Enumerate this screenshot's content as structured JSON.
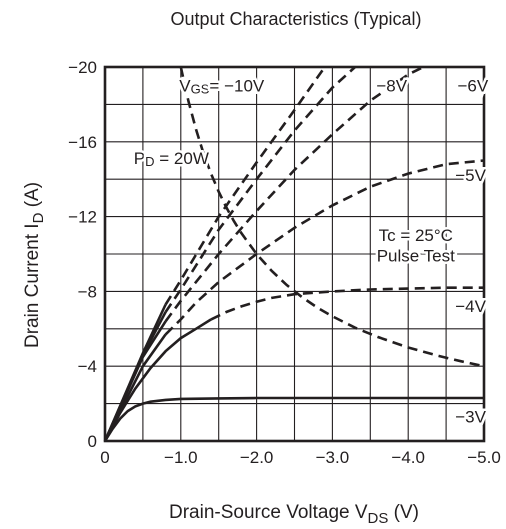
{
  "chart_data": {
    "type": "line",
    "title": "Output Characteristics  (Typical)",
    "xlabel": {
      "main": "Drain-Source Voltage  V",
      "sub": "DS",
      "unit": " (V)"
    },
    "ylabel": {
      "main": "Drain Current  I",
      "sub": "D",
      "unit": " (A)"
    },
    "xlim": [
      0,
      -5.0
    ],
    "ylim": [
      0,
      -20
    ],
    "x_ticks": [
      0,
      -1.0,
      -2.0,
      -3.0,
      -4.0,
      -5.0
    ],
    "x_tick_labels": [
      "0",
      "−1.0",
      "−2.0",
      "−3.0",
      "−4.0",
      "−5.0"
    ],
    "y_ticks": [
      0,
      -4,
      -8,
      -12,
      -16,
      -20
    ],
    "y_tick_labels": [
      "0",
      "−4",
      "−8",
      "−12",
      "−16",
      "−20"
    ],
    "grid": true,
    "grid_step": {
      "x": -0.5,
      "y": -2
    },
    "colors": {
      "line": "#231f20",
      "grid": "#231f20",
      "background": "#ffffff"
    },
    "series": [
      {
        "name": "−3V",
        "style": "solid",
        "points": [
          [
            0,
            0
          ],
          [
            -0.1,
            -0.65
          ],
          [
            -0.2,
            -1.2
          ],
          [
            -0.3,
            -1.6
          ],
          [
            -0.4,
            -1.85
          ],
          [
            -0.5,
            -2.0
          ],
          [
            -0.6,
            -2.1
          ],
          [
            -0.8,
            -2.2
          ],
          [
            -1.0,
            -2.25
          ],
          [
            -1.5,
            -2.28
          ],
          [
            -2.0,
            -2.3
          ],
          [
            -3.0,
            -2.3
          ],
          [
            -4.0,
            -2.3
          ],
          [
            -5.0,
            -2.3
          ]
        ]
      },
      {
        "name": "−4V",
        "style": "solid_dashed",
        "points": [
          [
            0,
            0
          ],
          [
            -0.2,
            -1.5
          ],
          [
            -0.4,
            -2.8
          ],
          [
            -0.6,
            -3.9
          ],
          [
            -0.8,
            -4.8
          ],
          [
            -1.0,
            -5.5
          ],
          [
            -1.2,
            -6.0
          ],
          [
            -1.4,
            -6.5
          ],
          [
            -1.6,
            -6.9
          ],
          [
            -1.8,
            -7.2
          ],
          [
            -2.0,
            -7.45
          ],
          [
            -2.2,
            -7.65
          ],
          [
            -2.5,
            -7.85
          ],
          [
            -3.0,
            -8.0
          ],
          [
            -3.5,
            -8.1
          ],
          [
            -4.0,
            -8.15
          ],
          [
            -4.5,
            -8.2
          ],
          [
            -5.0,
            -8.2
          ]
        ],
        "dash_from_x": -1.4
      },
      {
        "name": "−5V",
        "style": "solid_dashed",
        "points": [
          [
            0,
            0
          ],
          [
            -0.5,
            -4.0
          ],
          [
            -0.8,
            -5.7
          ],
          [
            -1.0,
            -6.5
          ],
          [
            -1.2,
            -7.4
          ],
          [
            -1.5,
            -8.5
          ],
          [
            -2.0,
            -10.0
          ],
          [
            -2.5,
            -11.4
          ],
          [
            -3.0,
            -12.6
          ],
          [
            -3.5,
            -13.6
          ],
          [
            -4.0,
            -14.3
          ],
          [
            -4.5,
            -14.8
          ],
          [
            -5.0,
            -15.0
          ]
        ],
        "dash_from_x": -0.8
      },
      {
        "name": "−6V",
        "style": "solid_dashed",
        "points": [
          [
            0,
            0
          ],
          [
            -0.5,
            -4.5
          ],
          [
            -0.8,
            -6.4
          ],
          [
            -1.0,
            -7.5
          ],
          [
            -1.5,
            -10.0
          ],
          [
            -2.0,
            -12.3
          ],
          [
            -2.5,
            -14.5
          ],
          [
            -3.0,
            -16.4
          ],
          [
            -3.5,
            -18.2
          ],
          [
            -4.0,
            -19.6
          ],
          [
            -4.2,
            -20.0
          ]
        ],
        "dash_from_x": -0.8
      },
      {
        "name": "−8V",
        "style": "solid_dashed",
        "points": [
          [
            0,
            0
          ],
          [
            -0.5,
            -4.6
          ],
          [
            -0.8,
            -6.9
          ],
          [
            -1.0,
            -8.1
          ],
          [
            -1.5,
            -11.3
          ],
          [
            -2.0,
            -14.0
          ],
          [
            -2.5,
            -16.6
          ],
          [
            -3.0,
            -18.9
          ],
          [
            -3.3,
            -20.0
          ]
        ],
        "dash_from_x": -0.8
      },
      {
        "name": "−10V",
        "style": "solid_dashed",
        "points": [
          [
            0,
            0
          ],
          [
            -0.5,
            -4.7
          ],
          [
            -0.8,
            -7.3
          ],
          [
            -1.0,
            -8.6
          ],
          [
            -1.5,
            -12.0
          ],
          [
            -2.0,
            -14.9
          ],
          [
            -2.5,
            -17.7
          ],
          [
            -2.9,
            -20.0
          ]
        ],
        "dash_from_x": -0.8
      },
      {
        "name": "P_D = 20W",
        "style": "dashed",
        "kind": "power_limit",
        "points": [
          [
            -1.0,
            -20.0
          ],
          [
            -1.1,
            -18.18
          ],
          [
            -1.2,
            -16.67
          ],
          [
            -1.3,
            -15.38
          ],
          [
            -1.4,
            -14.29
          ],
          [
            -1.5,
            -13.33
          ],
          [
            -1.6,
            -12.5
          ],
          [
            -1.7,
            -11.76
          ],
          [
            -1.8,
            -11.11
          ],
          [
            -2.0,
            -10.0
          ],
          [
            -2.2,
            -9.09
          ],
          [
            -2.4,
            -8.33
          ],
          [
            -2.6,
            -7.69
          ],
          [
            -2.8,
            -7.14
          ],
          [
            -3.0,
            -6.67
          ],
          [
            -3.3,
            -6.06
          ],
          [
            -3.6,
            -5.56
          ],
          [
            -4.0,
            -5.0
          ],
          [
            -4.4,
            -4.55
          ],
          [
            -4.7,
            -4.26
          ],
          [
            -5.0,
            -4.0
          ]
        ]
      }
    ],
    "annotations": [
      {
        "id": "vgs",
        "parts": [
          "V",
          "GS",
          "= −10V"
        ],
        "x": -0.98,
        "y": -18.7
      },
      {
        "id": "v8",
        "text": "−8V",
        "x": -3.58,
        "y": -18.7
      },
      {
        "id": "v6",
        "text": "−6V",
        "x": -4.65,
        "y": -18.7
      },
      {
        "id": "pd",
        "parts": [
          "P",
          "D",
          " = 20W"
        ],
        "x": -0.38,
        "y": -14.8
      },
      {
        "id": "v5",
        "text": "−5V",
        "x": -4.62,
        "y": -13.9
      },
      {
        "id": "tc",
        "text": "Tc = 25°C",
        "x": -4.1,
        "y": -10.7
      },
      {
        "id": "pulse",
        "text": "Pulse Test",
        "x": -4.1,
        "y": -9.6
      },
      {
        "id": "v4",
        "text": "−4V",
        "x": -4.62,
        "y": -6.9
      },
      {
        "id": "v3",
        "text": "−3V",
        "x": -4.62,
        "y": -1.0
      }
    ]
  }
}
